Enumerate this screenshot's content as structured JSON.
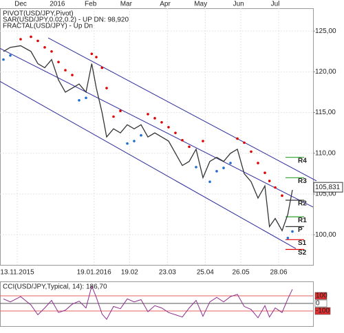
{
  "chart_data": [
    {
      "type": "line",
      "legend": [
        {
          "name": "PIVOT(USD/JPY,Pivot)",
          "color": "#000000"
        },
        {
          "name": "SAR(USD/JPY,0.02,0.2) - UP  DN: 98,920",
          "color": "#e00000"
        },
        {
          "name": "FRACTAL(USD/JPY) - Up  Dn",
          "color": "#1e6fd0"
        }
      ],
      "x": [
        -12,
        -6,
        3,
        12,
        18,
        24,
        30,
        36,
        42,
        48,
        54,
        60,
        65,
        69,
        74,
        78,
        84,
        90,
        96,
        102,
        108,
        114,
        120,
        126,
        132,
        138,
        144,
        150,
        156,
        162,
        168,
        174,
        180,
        186,
        192,
        198,
        204,
        210,
        216,
        220,
        225,
        231,
        236,
        240
      ],
      "series": [
        {
          "name": "USD/JPY",
          "color": "#333333",
          "values": [
            122.5,
            123.0,
            123.2,
            122.5,
            121.0,
            120.5,
            121.5,
            119.0,
            117.5,
            118.0,
            118.5,
            117.5,
            121.0,
            118.0,
            115.0,
            112.0,
            113.0,
            112.5,
            113.5,
            113.0,
            113.5,
            112.0,
            112.5,
            112.0,
            111.5,
            110.0,
            108.5,
            109.0,
            110.5,
            107.0,
            109.0,
            109.5,
            109.0,
            110.0,
            110.5,
            107.5,
            106.5,
            104.5,
            106.0,
            101.0,
            102.0,
            100.5,
            102.5,
            105.5
          ]
        },
        {
          "name": "SAR",
          "color": "#e00000",
          "color_up": "#1e6fd0",
          "values": [
            121.5,
            122.0,
            124.0,
            124.3,
            123.8,
            123.0,
            122.5,
            121.2,
            120.2,
            119.6,
            116.5,
            116.8,
            122.2,
            121.8,
            120.5,
            118.0,
            114.5,
            115.2,
            111.2,
            111.5,
            112.2,
            114.8,
            114.3,
            113.8,
            113.2,
            112.5,
            111.6,
            110.8,
            108.3,
            111.5,
            106.5,
            107.8,
            108.2,
            108.8,
            111.8,
            111.3,
            110.2,
            108.8,
            107.6,
            106.6,
            105.8,
            104.8,
            99.6,
            100.4
          ]
        }
      ],
      "xlim": [
        -15,
        258
      ],
      "xticks": [
        {
          "value": 0,
          "label": "13.11.2015"
        },
        {
          "value": 67,
          "label": "19.01.2016"
        },
        {
          "value": 98,
          "label": "19.02"
        },
        {
          "value": 131,
          "label": "23.03"
        },
        {
          "value": 164,
          "label": "25.04"
        },
        {
          "value": 195,
          "label": "26.05"
        },
        {
          "value": 228,
          "label": "28.06"
        }
      ],
      "top_xticks": [
        {
          "value": 3,
          "label": "Dec"
        },
        {
          "value": 35,
          "label": "2016"
        },
        {
          "value": 64,
          "label": "Feb"
        },
        {
          "value": 95,
          "label": "Mar"
        },
        {
          "value": 129,
          "label": "Apr"
        },
        {
          "value": 160,
          "label": "May"
        },
        {
          "value": 193,
          "label": "Jun"
        },
        {
          "value": 225,
          "label": "Jul"
        }
      ],
      "ylim": [
        96.3,
        127.8
      ],
      "yticks": [
        {
          "value": 100,
          "label": "100,00"
        },
        {
          "value": 105,
          "label": "105,00"
        },
        {
          "value": 110,
          "label": "110,00"
        },
        {
          "value": 115,
          "label": "115,00"
        },
        {
          "value": 120,
          "label": "120,00"
        },
        {
          "value": 125,
          "label": "125,00"
        }
      ],
      "grid": true,
      "channels": [
        {
          "x": [
            27,
            261
          ],
          "y": [
            124.16,
            106.61
          ],
          "color": "#2b2b9a"
        },
        {
          "x": [
            -15,
            258
          ],
          "y": [
            122.88,
            103.4
          ],
          "color": "#2b2b9a"
        },
        {
          "x": [
            -15,
            243
          ],
          "y": [
            118.82,
            98.3
          ],
          "color": "#2b2b9a"
        }
      ],
      "levels": [
        {
          "label": "R4",
          "value": 109.5,
          "color": "#2ca02c"
        },
        {
          "label": "R3",
          "value": 107.0,
          "color": "#2ca02c"
        },
        {
          "label": "R2",
          "value": 104.24,
          "color": "#333333"
        },
        {
          "label": "R1",
          "value": 102.2,
          "color": "#2ca02c"
        },
        {
          "label": "P",
          "value": 101.0,
          "color": "#333333"
        },
        {
          "label": "S1",
          "value": 99.4,
          "color": "#e00000"
        },
        {
          "label": "S2",
          "value": 98.2,
          "color": "#e00000"
        }
      ],
      "last_price": {
        "value": 105.831,
        "label": "105,831"
      }
    },
    {
      "type": "line",
      "title": "CCI(USD/JPY,Typical, 14): 186,70",
      "x": [
        -12,
        -6,
        3,
        12,
        18,
        24,
        30,
        36,
        42,
        48,
        54,
        60,
        65,
        69,
        74,
        78,
        84,
        90,
        96,
        102,
        108,
        114,
        120,
        126,
        132,
        138,
        144,
        150,
        156,
        162,
        168,
        174,
        180,
        186,
        192,
        198,
        204,
        210,
        216,
        220,
        225,
        231,
        236,
        240
      ],
      "series": [
        {
          "name": "CCI",
          "color": "#8b2c8b",
          "values": [
            60,
            20,
            90,
            -20,
            -150,
            -60,
            40,
            -120,
            -90,
            -10,
            30,
            -60,
            230,
            80,
            -140,
            -210,
            -40,
            -70,
            60,
            20,
            50,
            -110,
            -30,
            -60,
            -120,
            -150,
            -180,
            -60,
            40,
            -170,
            20,
            80,
            20,
            90,
            120,
            -40,
            -80,
            -190,
            -30,
            -180,
            -60,
            -120,
            60,
            186.7
          ]
        }
      ],
      "xlim": [
        -15,
        258
      ],
      "ylim": [
        -300,
        291
      ],
      "yticks": [
        100,
        0,
        -100
      ]
    }
  ]
}
